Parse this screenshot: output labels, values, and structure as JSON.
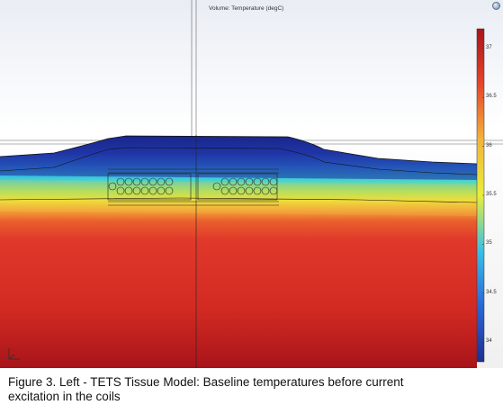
{
  "plot": {
    "title": "Volume: Temperature (degC)"
  },
  "colorbar": {
    "unit": "degC",
    "min": 33.8,
    "max": 37.2,
    "ticks": [
      {
        "value": 37,
        "label": "37"
      },
      {
        "value": 36.5,
        "label": "36.5"
      },
      {
        "value": 36,
        "label": "36"
      },
      {
        "value": 35.5,
        "label": "35.5"
      },
      {
        "value": 35,
        "label": "35"
      },
      {
        "value": 34.5,
        "label": "34.5"
      },
      {
        "value": 34,
        "label": "34"
      }
    ],
    "colors": [
      "#1d2f8f",
      "#2a66d8",
      "#36c1e6",
      "#e8ee3a",
      "#f3b43a",
      "#e8452a",
      "#a8141a"
    ]
  },
  "coils": {
    "left_count": 14,
    "right_count": 14
  },
  "caption": "Figure 3.  Left - TETS Tissue Model:  Baseline temperatures before current\nexcitation in the coils"
}
